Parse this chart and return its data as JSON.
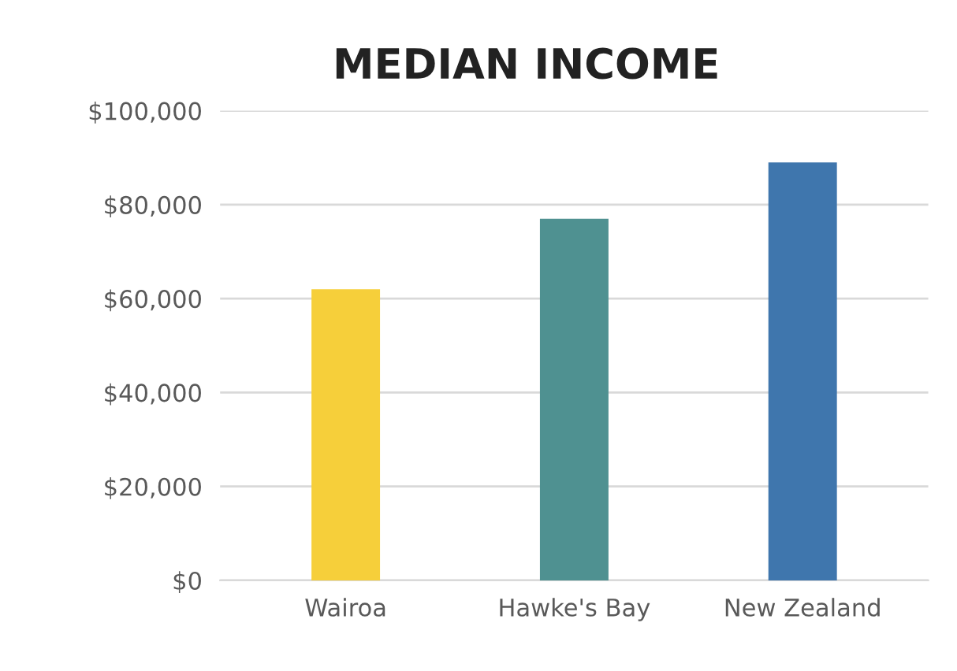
{
  "chart_data": {
    "type": "bar",
    "title": "MEDIAN INCOME",
    "categories": [
      "Wairoa",
      "Hawke's Bay",
      "New Zealand"
    ],
    "values": [
      62000,
      77000,
      89000
    ],
    "colors": [
      "#f6cf3a",
      "#4f9191",
      "#3f76ad"
    ],
    "ylim": [
      0,
      100000
    ],
    "yticks": [
      {
        "value": 0,
        "label": "$0"
      },
      {
        "value": 20000,
        "label": "$20,000"
      },
      {
        "value": 40000,
        "label": "$40,000"
      },
      {
        "value": 60000,
        "label": "$60,000"
      },
      {
        "value": 80000,
        "label": "$80,000"
      },
      {
        "value": 100000,
        "label": "$100,000"
      }
    ],
    "grid": "y"
  }
}
